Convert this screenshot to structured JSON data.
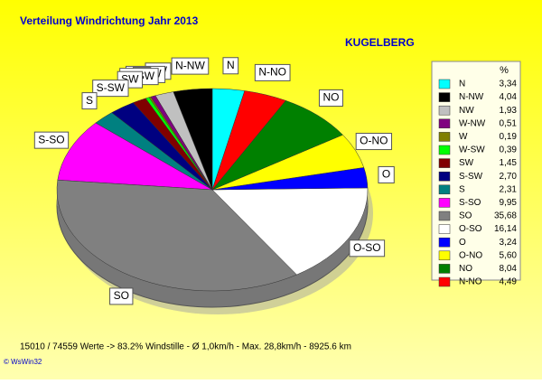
{
  "chart_data": {
    "type": "pie",
    "title": "Verteilung Windrichtung   Jahr 2013",
    "subtitle": "KUGELBERG",
    "legend_header": "%",
    "categories": [
      "N",
      "N-NW",
      "NW",
      "W-NW",
      "W",
      "W-SW",
      "SW",
      "S-SW",
      "S",
      "S-SO",
      "SO",
      "O-SO",
      "O",
      "O-NO",
      "NO",
      "N-NO"
    ],
    "values": [
      3.34,
      4.04,
      1.93,
      0.51,
      0.19,
      0.39,
      1.45,
      2.7,
      2.31,
      9.95,
      35.68,
      16.14,
      3.24,
      5.6,
      8.04,
      4.49
    ],
    "value_labels": [
      "3,34",
      "4,04",
      "1,93",
      "0,51",
      "0,19",
      "0,39",
      "1,45",
      "2,70",
      "2,31",
      "9,95",
      "35,68",
      "16,14",
      "3,24",
      "5,60",
      "8,04",
      "4,49"
    ],
    "colors": [
      "#00ffff",
      "#000000",
      "#c0c0c0",
      "#800080",
      "#808000",
      "#00ff00",
      "#800000",
      "#000080",
      "#008080",
      "#ff00ff",
      "#808080",
      "#ffffff",
      "#0000ff",
      "#ffff00",
      "#008000",
      "#ff0000"
    ],
    "footer": "15010 / 74559 Werte  -> 83.2% Windstille   -  Ø 1,0km/h  -  Max. 28,8km/h  -   8925.6 km",
    "copyright": "© WsWin32"
  }
}
